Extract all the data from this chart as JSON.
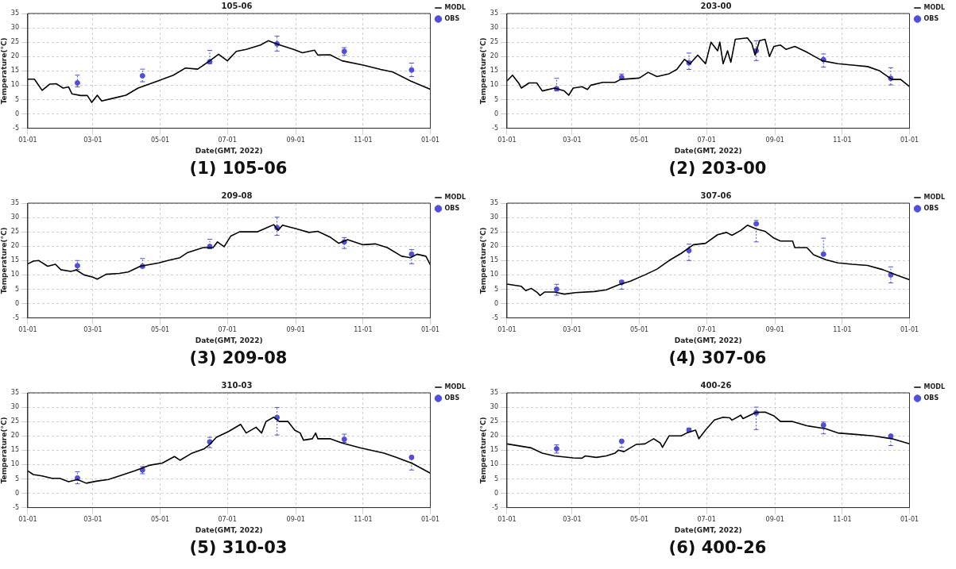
{
  "chart_data": [
    {
      "type": "line",
      "title": "105-06",
      "xlabel": "Date(GMT, 2022)",
      "ylabel": "Temperature(°C)",
      "annotations": [
        "(1) 105-06"
      ],
      "xlim": [
        "2022-01-01",
        "2023-01-01"
      ],
      "xticks": [
        {
          "value": "2022-01-01",
          "label": "01-01"
        },
        {
          "value": "2022-03-01",
          "label": "03-01"
        },
        {
          "value": "2022-05-01",
          "label": "05-01"
        },
        {
          "value": "2022-07-01",
          "label": "07-01"
        },
        {
          "value": "2022-09-01",
          "label": "09-01"
        },
        {
          "value": "2022-11-01",
          "label": "11-01"
        },
        {
          "value": "2023-01-01",
          "label": "01-01"
        }
      ],
      "ylim": [
        -5,
        35
      ],
      "yticks": [
        -5,
        0,
        5,
        10,
        15,
        20,
        25,
        30,
        35
      ],
      "grid": true,
      "legend": "top right",
      "series": [
        {
          "name": "MODL",
          "type": "line",
          "color": "#000000",
          "x": [
            "2022-01-01",
            "2022-01-07",
            "2022-01-14",
            "2022-01-21",
            "2022-01-27",
            "2022-02-02",
            "2022-02-07",
            "2022-02-10",
            "2022-02-18",
            "2022-02-24",
            "2022-02-28",
            "2022-03-05",
            "2022-03-09",
            "2022-03-20",
            "2022-03-31",
            "2022-04-11",
            "2022-04-27",
            "2022-05-13",
            "2022-05-24",
            "2022-06-04",
            "2022-06-15",
            "2022-06-23",
            "2022-07-01",
            "2022-07-09",
            "2022-07-18",
            "2022-07-31",
            "2022-08-07",
            "2022-08-16",
            "2022-08-30",
            "2022-09-07",
            "2022-09-18",
            "2022-09-21",
            "2022-10-02",
            "2022-10-13",
            "2022-11-01",
            "2022-11-17",
            "2022-11-28",
            "2022-12-14",
            "2023-01-01"
          ],
          "values": [
            12.1,
            12.1,
            8.2,
            10.4,
            10.5,
            9.0,
            9.4,
            7.0,
            6.4,
            6.4,
            4.0,
            6.5,
            4.5,
            5.5,
            6.5,
            9.0,
            11.2,
            13.5,
            16.0,
            15.6,
            18.5,
            20.8,
            18.5,
            21.8,
            22.5,
            24.0,
            25.5,
            24.2,
            22.5,
            21.3,
            22.2,
            20.5,
            20.6,
            18.5,
            17.0,
            15.5,
            14.6,
            11.5,
            8.6
          ]
        },
        {
          "name": "OBS",
          "type": "scatter",
          "color": "#4f4fd9",
          "x": [
            "2022-02-15",
            "2022-04-15",
            "2022-06-15",
            "2022-08-15",
            "2022-10-15",
            "2022-12-15"
          ],
          "marker": "circle",
          "values": [
            10.8,
            13.3,
            18.2,
            24.4,
            21.8,
            15.3
          ],
          "errors": [
            [
              9.4,
              13.5
            ],
            [
              11.2,
              15.6
            ],
            [
              17.5,
              22.1
            ],
            [
              21.9,
              27.1
            ],
            [
              20.4,
              23.1
            ],
            [
              13.0,
              17.7
            ]
          ]
        }
      ]
    },
    {
      "type": "line",
      "title": "203-00",
      "xlabel": "Date(GMT, 2022)",
      "ylabel": "Temperature(°C)",
      "annotations": [
        "(2) 203-00"
      ],
      "xlim": [
        "2022-01-01",
        "2023-01-01"
      ],
      "xticks": [
        {
          "value": "2022-01-01",
          "label": "01-01"
        },
        {
          "value": "2022-03-01",
          "label": "03-01"
        },
        {
          "value": "2022-05-01",
          "label": "05-01"
        },
        {
          "value": "2022-07-01",
          "label": "07-01"
        },
        {
          "value": "2022-09-01",
          "label": "09-01"
        },
        {
          "value": "2022-11-01",
          "label": "11-01"
        },
        {
          "value": "2023-01-01",
          "label": "01-01"
        }
      ],
      "ylim": [
        -5,
        35
      ],
      "yticks": [
        -5,
        0,
        5,
        10,
        15,
        20,
        25,
        30,
        35
      ],
      "grid": true,
      "legend": "top right",
      "series": [
        {
          "name": "MODL",
          "type": "line",
          "color": "#000000",
          "x": [
            "2022-01-01",
            "2022-01-06",
            "2022-01-12",
            "2022-01-14",
            "2022-01-21",
            "2022-01-28",
            "2022-02-02",
            "2022-02-13",
            "2022-02-22",
            "2022-02-26",
            "2022-03-02",
            "2022-03-10",
            "2022-03-15",
            "2022-03-18",
            "2022-03-29",
            "2022-04-09",
            "2022-04-14",
            "2022-05-01",
            "2022-05-09",
            "2022-05-17",
            "2022-05-28",
            "2022-06-04",
            "2022-06-11",
            "2022-06-16",
            "2022-06-23",
            "2022-06-30",
            "2022-07-05",
            "2022-07-11",
            "2022-07-13",
            "2022-07-16",
            "2022-07-20",
            "2022-07-23",
            "2022-07-27",
            "2022-08-07",
            "2022-08-11",
            "2022-08-14",
            "2022-08-18",
            "2022-08-23",
            "2022-08-27",
            "2022-08-31",
            "2022-09-06",
            "2022-09-11",
            "2022-09-19",
            "2022-09-30",
            "2022-10-14",
            "2022-10-28",
            "2022-11-10",
            "2022-11-24",
            "2022-12-05",
            "2022-12-16",
            "2022-12-24",
            "2023-01-01"
          ],
          "values": [
            11.5,
            13.5,
            10.5,
            9.0,
            10.8,
            10.8,
            8.0,
            9.0,
            8.0,
            6.5,
            9.0,
            9.5,
            8.5,
            10.0,
            11.0,
            11.0,
            12.0,
            12.5,
            14.5,
            13.0,
            14.0,
            15.5,
            19.0,
            17.5,
            20.5,
            17.5,
            25.0,
            22.0,
            25.0,
            17.5,
            22.0,
            18.0,
            26.0,
            26.5,
            24.5,
            20.5,
            25.5,
            26.0,
            20.0,
            23.5,
            24.0,
            22.5,
            23.5,
            21.5,
            18.5,
            17.5,
            17.0,
            16.5,
            15.0,
            12.0,
            12.0,
            9.5
          ]
        },
        {
          "name": "OBS",
          "type": "scatter",
          "color": "#4f4fd9",
          "x": [
            "2022-02-15",
            "2022-04-15",
            "2022-06-15",
            "2022-08-15",
            "2022-10-15",
            "2022-12-15"
          ],
          "marker": "circle",
          "values": [
            8.8,
            12.7,
            17.8,
            22.0,
            18.9,
            12.4
          ],
          "errors": [
            [
              8.0,
              12.4
            ],
            [
              12.2,
              13.9
            ],
            [
              15.5,
              21.2
            ],
            [
              18.6,
              25.5
            ],
            [
              16.3,
              20.9
            ],
            [
              10.1,
              16.1
            ]
          ]
        }
      ]
    },
    {
      "type": "line",
      "title": "209-08",
      "xlabel": "Date(GMT, 2022)",
      "ylabel": "Temperature(°C)",
      "annotations": [
        "(3) 209-08"
      ],
      "xlim": [
        "2022-01-01",
        "2023-01-01"
      ],
      "xticks": [
        {
          "value": "2022-01-01",
          "label": "01-01"
        },
        {
          "value": "2022-03-01",
          "label": "03-01"
        },
        {
          "value": "2022-05-01",
          "label": "05-01"
        },
        {
          "value": "2022-07-01",
          "label": "07-01"
        },
        {
          "value": "2022-09-01",
          "label": "09-01"
        },
        {
          "value": "2022-11-01",
          "label": "11-01"
        },
        {
          "value": "2023-01-01",
          "label": "01-01"
        }
      ],
      "ylim": [
        -5,
        35
      ],
      "yticks": [
        -5,
        0,
        5,
        10,
        15,
        20,
        25,
        30,
        35
      ],
      "grid": true,
      "legend": "top right",
      "series": [
        {
          "name": "MODL",
          "type": "line",
          "color": "#000000",
          "x": [
            "2022-01-01",
            "2022-01-06",
            "2022-01-11",
            "2022-01-19",
            "2022-01-26",
            "2022-01-31",
            "2022-02-09",
            "2022-02-14",
            "2022-02-21",
            "2022-03-01",
            "2022-03-05",
            "2022-03-13",
            "2022-03-25",
            "2022-04-02",
            "2022-04-13",
            "2022-04-30",
            "2022-05-08",
            "2022-05-19",
            "2022-05-26",
            "2022-06-09",
            "2022-06-18",
            "2022-06-22",
            "2022-06-28",
            "2022-07-04",
            "2022-07-12",
            "2022-07-28",
            "2022-08-06",
            "2022-08-12",
            "2022-08-16",
            "2022-08-20",
            "2022-09-02",
            "2022-09-13",
            "2022-09-21",
            "2022-10-02",
            "2022-10-10",
            "2022-10-18",
            "2022-11-01",
            "2022-11-12",
            "2022-11-23",
            "2022-12-06",
            "2022-12-14",
            "2022-12-20",
            "2022-12-28",
            "2023-01-01"
          ],
          "values": [
            13.8,
            14.8,
            15.0,
            13.0,
            13.7,
            11.8,
            11.2,
            11.7,
            10.0,
            9.2,
            8.5,
            10.2,
            10.5,
            11.0,
            13.0,
            14.2,
            15.0,
            16.0,
            17.8,
            19.5,
            19.5,
            21.5,
            19.8,
            23.5,
            25.0,
            25.0,
            26.5,
            27.5,
            25.5,
            27.3,
            26.0,
            24.8,
            25.2,
            23.2,
            21.0,
            22.3,
            20.5,
            20.8,
            19.5,
            16.5,
            16.0,
            17.2,
            16.5,
            13.5
          ]
        },
        {
          "name": "OBS",
          "type": "scatter",
          "color": "#4f4fd9",
          "x": [
            "2022-02-15",
            "2022-04-15",
            "2022-06-15",
            "2022-08-15",
            "2022-10-15",
            "2022-12-15"
          ],
          "marker": "circle",
          "values": [
            13.2,
            13.0,
            19.9,
            26.5,
            21.5,
            17.2
          ],
          "errors": [
            [
              11.9,
              15.0
            ],
            [
              12.6,
              15.7
            ],
            [
              19.1,
              22.4
            ],
            [
              23.8,
              30.1
            ],
            [
              19.2,
              23.0
            ],
            [
              13.9,
              18.8
            ]
          ]
        }
      ]
    },
    {
      "type": "line",
      "title": "307-06",
      "xlabel": "Date(GMT, 2022)",
      "ylabel": "Temperature(°C)",
      "annotations": [
        "(4) 307-06"
      ],
      "xlim": [
        "2022-01-01",
        "2023-01-01"
      ],
      "xticks": [
        {
          "value": "2022-01-01",
          "label": "01-01"
        },
        {
          "value": "2022-03-01",
          "label": "03-01"
        },
        {
          "value": "2022-05-01",
          "label": "05-01"
        },
        {
          "value": "2022-07-01",
          "label": "07-01"
        },
        {
          "value": "2022-09-01",
          "label": "09-01"
        },
        {
          "value": "2022-11-01",
          "label": "11-01"
        },
        {
          "value": "2023-01-01",
          "label": "01-01"
        }
      ],
      "ylim": [
        -5,
        35
      ],
      "yticks": [
        -5,
        0,
        5,
        10,
        15,
        20,
        25,
        30,
        35
      ],
      "grid": true,
      "legend": "top right",
      "series": [
        {
          "name": "MODL",
          "type": "line",
          "color": "#000000",
          "x": [
            "2022-01-01",
            "2022-01-14",
            "2022-01-18",
            "2022-01-23",
            "2022-01-28",
            "2022-01-31",
            "2022-02-04",
            "2022-02-13",
            "2022-02-22",
            "2022-03-04",
            "2022-03-21",
            "2022-04-01",
            "2022-04-12",
            "2022-04-23",
            "2022-05-06",
            "2022-05-17",
            "2022-05-28",
            "2022-06-08",
            "2022-06-19",
            "2022-06-30",
            "2022-07-11",
            "2022-07-19",
            "2022-07-24",
            "2022-08-01",
            "2022-08-07",
            "2022-08-15",
            "2022-08-23",
            "2022-08-31",
            "2022-09-06",
            "2022-09-17",
            "2022-09-19",
            "2022-09-30",
            "2022-10-06",
            "2022-10-17",
            "2022-10-28",
            "2022-11-10",
            "2022-11-24",
            "2022-12-08",
            "2022-12-21",
            "2023-01-01"
          ],
          "values": [
            6.8,
            6.0,
            4.5,
            5.3,
            4.0,
            2.8,
            4.0,
            4.0,
            3.3,
            3.8,
            4.2,
            4.8,
            6.5,
            7.8,
            10.0,
            12.0,
            15.0,
            17.5,
            20.5,
            21.0,
            24.0,
            24.8,
            23.8,
            25.5,
            27.3,
            26.0,
            25.2,
            22.8,
            21.8,
            21.8,
            19.5,
            19.5,
            17.0,
            15.3,
            14.2,
            13.7,
            13.3,
            11.8,
            9.8,
            8.3
          ]
        },
        {
          "name": "OBS",
          "type": "scatter",
          "color": "#4f4fd9",
          "x": [
            "2022-02-15",
            "2022-04-15",
            "2022-06-15",
            "2022-08-15",
            "2022-10-15",
            "2022-12-15"
          ],
          "marker": "circle",
          "values": [
            5.0,
            7.4,
            18.5,
            27.8,
            17.2,
            10.0
          ],
          "errors": [
            [
              2.9,
              6.7
            ],
            [
              5.0,
              8.1
            ],
            [
              15.0,
              20.7
            ],
            [
              21.5,
              29.0
            ],
            [
              17.1,
              22.8
            ],
            [
              7.2,
              12.8
            ]
          ]
        }
      ]
    },
    {
      "type": "line",
      "title": "310-03",
      "xlabel": "Date(GMT, 2022)",
      "ylabel": "Temperature(°C)",
      "annotations": [
        "(5) 310-03"
      ],
      "xlim": [
        "2022-01-01",
        "2023-01-01"
      ],
      "xticks": [
        {
          "value": "2022-01-01",
          "label": "01-01"
        },
        {
          "value": "2022-03-01",
          "label": "03-01"
        },
        {
          "value": "2022-05-01",
          "label": "05-01"
        },
        {
          "value": "2022-07-01",
          "label": "07-01"
        },
        {
          "value": "2022-09-01",
          "label": "09-01"
        },
        {
          "value": "2022-11-01",
          "label": "11-01"
        },
        {
          "value": "2023-01-01",
          "label": "01-01"
        }
      ],
      "ylim": [
        -5,
        35
      ],
      "yticks": [
        -5,
        0,
        5,
        10,
        15,
        20,
        25,
        30,
        35
      ],
      "grid": true,
      "legend": "top right",
      "series": [
        {
          "name": "MODL",
          "type": "line",
          "color": "#000000",
          "x": [
            "2022-01-01",
            "2022-01-06",
            "2022-01-14",
            "2022-01-23",
            "2022-01-30",
            "2022-02-07",
            "2022-02-15",
            "2022-02-23",
            "2022-03-04",
            "2022-03-15",
            "2022-03-25",
            "2022-04-08",
            "2022-04-22",
            "2022-05-03",
            "2022-05-14",
            "2022-05-19",
            "2022-05-30",
            "2022-06-10",
            "2022-06-15",
            "2022-06-21",
            "2022-07-02",
            "2022-07-13",
            "2022-07-18",
            "2022-07-27",
            "2022-08-01",
            "2022-08-05",
            "2022-08-12",
            "2022-08-17",
            "2022-08-25",
            "2022-08-31",
            "2022-09-05",
            "2022-09-08",
            "2022-09-16",
            "2022-09-19",
            "2022-09-21",
            "2022-10-02",
            "2022-10-13",
            "2022-10-30",
            "2022-11-20",
            "2022-12-01",
            "2022-12-15",
            "2023-01-01"
          ],
          "values": [
            7.8,
            6.5,
            6.0,
            5.2,
            5.2,
            4.0,
            4.8,
            3.5,
            4.2,
            4.8,
            6.0,
            7.8,
            9.8,
            10.5,
            12.8,
            11.5,
            14.0,
            15.5,
            17.0,
            19.5,
            21.5,
            24.0,
            21.0,
            23.0,
            21.0,
            25.0,
            26.5,
            25.0,
            25.0,
            22.0,
            21.0,
            18.5,
            19.0,
            21.0,
            19.0,
            19.0,
            17.5,
            15.8,
            14.0,
            12.5,
            10.5,
            7.0
          ]
        },
        {
          "name": "OBS",
          "type": "scatter",
          "color": "#4f4fd9",
          "x": [
            "2022-02-15",
            "2022-04-15",
            "2022-06-15",
            "2022-08-15",
            "2022-10-15",
            "2022-12-15"
          ],
          "marker": "circle",
          "values": [
            5.3,
            8.1,
            17.9,
            26.4,
            18.8,
            12.5
          ],
          "errors": [
            [
              3.3,
              7.5
            ],
            [
              6.8,
              9.3
            ],
            [
              15.9,
              19.5
            ],
            [
              20.3,
              29.9
            ],
            [
              17.7,
              20.6
            ],
            [
              8.1,
              13.0
            ]
          ]
        }
      ]
    },
    {
      "type": "line",
      "title": "400-26",
      "xlabel": "Date(GMT, 2022)",
      "ylabel": "Temperature(°C)",
      "annotations": [
        "(6) 400-26"
      ],
      "xlim": [
        "2022-01-01",
        "2023-01-01"
      ],
      "xticks": [
        {
          "value": "2022-01-01",
          "label": "01-01"
        },
        {
          "value": "2022-03-01",
          "label": "03-01"
        },
        {
          "value": "2022-05-01",
          "label": "05-01"
        },
        {
          "value": "2022-07-01",
          "label": "07-01"
        },
        {
          "value": "2022-09-01",
          "label": "09-01"
        },
        {
          "value": "2022-11-01",
          "label": "11-01"
        },
        {
          "value": "2023-01-01",
          "label": "01-01"
        }
      ],
      "ylim": [
        -5,
        35
      ],
      "yticks": [
        -5,
        0,
        5,
        10,
        15,
        20,
        25,
        30,
        35
      ],
      "grid": true,
      "legend": "top right",
      "series": [
        {
          "name": "MODL",
          "type": "line",
          "color": "#000000",
          "x": [
            "2022-01-01",
            "2022-01-23",
            "2022-02-02",
            "2022-02-13",
            "2022-03-02",
            "2022-03-10",
            "2022-03-13",
            "2022-03-23",
            "2022-04-01",
            "2022-04-09",
            "2022-04-12",
            "2022-04-17",
            "2022-04-28",
            "2022-05-06",
            "2022-05-14",
            "2022-05-20",
            "2022-05-22",
            "2022-05-28",
            "2022-06-08",
            "2022-06-13",
            "2022-06-21",
            "2022-06-24",
            "2022-06-30",
            "2022-07-08",
            "2022-07-16",
            "2022-07-22",
            "2022-07-24",
            "2022-08-01",
            "2022-08-03",
            "2022-08-15",
            "2022-08-23",
            "2022-08-31",
            "2022-09-06",
            "2022-09-17",
            "2022-09-30",
            "2022-10-17",
            "2022-10-28",
            "2022-11-13",
            "2022-11-29",
            "2022-12-16",
            "2023-01-01"
          ],
          "values": [
            17.2,
            15.8,
            14.0,
            13.0,
            12.3,
            12.2,
            13.0,
            12.5,
            13.0,
            14.0,
            15.0,
            14.5,
            17.0,
            17.2,
            19.0,
            17.5,
            16.0,
            20.0,
            20.0,
            21.0,
            22.0,
            19.0,
            22.0,
            25.5,
            26.5,
            26.3,
            25.5,
            27.2,
            26.0,
            28.2,
            28.3,
            27.0,
            25.0,
            25.0,
            23.5,
            22.5,
            21.0,
            20.5,
            20.0,
            19.0,
            17.2
          ]
        },
        {
          "name": "OBS",
          "type": "scatter",
          "color": "#4f4fd9",
          "x": [
            "2022-02-15",
            "2022-04-15",
            "2022-06-15",
            "2022-08-15",
            "2022-10-15",
            "2022-12-15"
          ],
          "marker": "circle",
          "values": [
            15.5,
            18.1,
            22.0,
            28.0,
            23.7,
            19.9
          ],
          "errors": [
            [
              14.0,
              16.9
            ],
            [
              16.0,
              18.5
            ],
            [
              21.5,
              22.7
            ],
            [
              22.2,
              30.0
            ],
            [
              20.7,
              24.8
            ],
            [
              16.6,
              20.1
            ]
          ]
        }
      ]
    }
  ]
}
